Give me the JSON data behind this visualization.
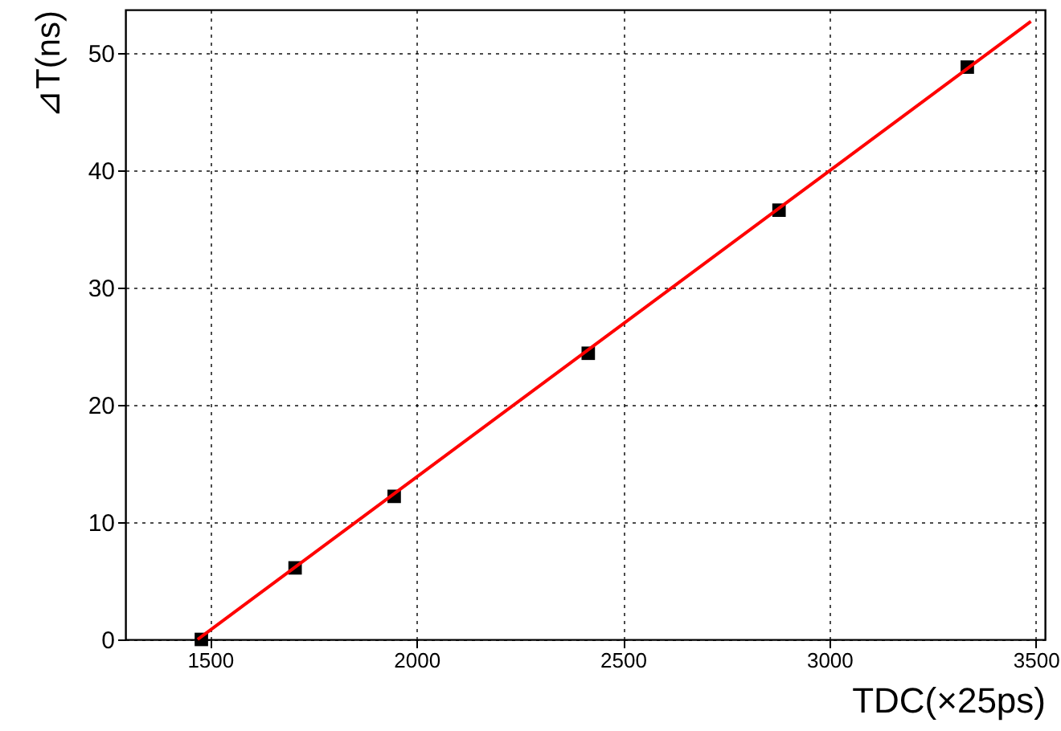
{
  "chart_data": {
    "type": "scatter",
    "xlabel": "TDC(×25ps)",
    "ylabel": "⊿T(ns)",
    "xlim": [
      1295,
      3522
    ],
    "ylim": [
      0,
      53.7
    ],
    "xticks": [
      1500,
      2000,
      2500,
      3000,
      3500
    ],
    "yticks": [
      0,
      10,
      20,
      30,
      40,
      50
    ],
    "grid": true,
    "series": [
      {
        "type": "scatter",
        "color": "#000000",
        "marker": "square",
        "x": [
          1479,
          1706,
          1946,
          2416,
          2878,
          3334
        ],
        "values": [
          0,
          6.1,
          12.2,
          24.4,
          36.6,
          48.8
        ]
      },
      {
        "type": "line",
        "color": "#ff0000",
        "line_style": "solid",
        "x": [
          1470,
          3488
        ],
        "values": [
          0,
          52.7
        ]
      }
    ]
  }
}
